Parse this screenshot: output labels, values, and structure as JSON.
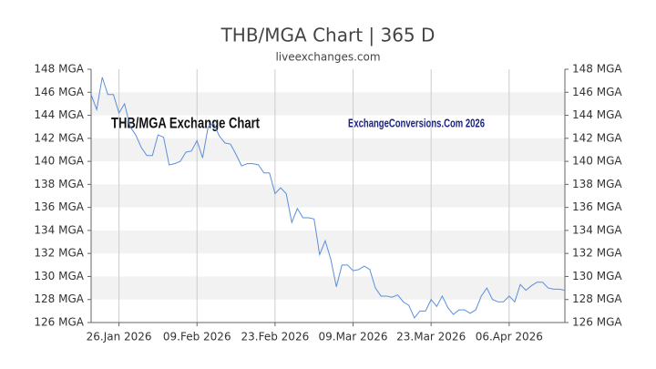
{
  "chart_data": {
    "type": "line",
    "title": "THB/MGA Chart | 365 D",
    "subtitle": "liveexchanges.com",
    "annotations": [
      "THB/MGA Exchange Chart",
      "ExchangeConversions.Com 2026"
    ],
    "x": [
      "2026-01-21",
      "2026-01-22",
      "2026-01-23",
      "2026-01-24",
      "2026-01-25",
      "2026-01-26",
      "2026-01-27",
      "2026-01-28",
      "2026-01-29",
      "2026-01-30",
      "2026-01-31",
      "2026-02-01",
      "2026-02-02",
      "2026-02-03",
      "2026-02-04",
      "2026-02-05",
      "2026-02-06",
      "2026-02-07",
      "2026-02-08",
      "2026-02-09",
      "2026-02-10",
      "2026-02-11",
      "2026-02-12",
      "2026-02-13",
      "2026-02-14",
      "2026-02-15",
      "2026-02-16",
      "2026-02-17",
      "2026-02-18",
      "2026-02-19",
      "2026-02-20",
      "2026-02-21",
      "2026-02-22",
      "2026-02-23",
      "2026-02-24",
      "2026-02-25",
      "2026-02-26",
      "2026-02-27",
      "2026-02-28",
      "2026-03-01",
      "2026-03-02",
      "2026-03-03",
      "2026-03-04",
      "2026-03-05",
      "2026-03-06",
      "2026-03-07",
      "2026-03-08",
      "2026-03-09",
      "2026-03-10",
      "2026-03-11",
      "2026-03-12",
      "2026-03-13",
      "2026-03-14",
      "2026-03-15",
      "2026-03-16",
      "2026-03-17",
      "2026-03-18",
      "2026-03-19",
      "2026-03-20",
      "2026-03-21",
      "2026-03-22",
      "2026-03-23",
      "2026-03-24",
      "2026-03-25",
      "2026-03-26",
      "2026-03-27",
      "2026-03-28",
      "2026-03-29",
      "2026-03-30",
      "2026-03-31",
      "2026-04-01",
      "2026-04-02",
      "2026-04-03",
      "2026-04-04",
      "2026-04-05",
      "2026-04-06",
      "2026-04-07",
      "2026-04-08",
      "2026-04-09",
      "2026-04-10",
      "2026-04-11",
      "2026-04-12",
      "2026-04-13",
      "2026-04-14",
      "2026-04-15",
      "2026-04-16"
    ],
    "series": [
      {
        "name": "THB/MGA",
        "color": "#5b8fd9",
        "values": [
          145.8,
          144.5,
          147.3,
          145.8,
          145.8,
          144.2,
          145.0,
          143.0,
          142.3,
          141.2,
          140.5,
          140.5,
          142.3,
          142.1,
          139.7,
          139.8,
          140.0,
          140.8,
          140.9,
          141.8,
          140.3,
          143.0,
          143.3,
          142.2,
          141.6,
          141.5,
          140.6,
          139.6,
          139.8,
          139.8,
          139.7,
          139.0,
          139.0,
          137.2,
          137.7,
          137.2,
          134.7,
          135.9,
          135.1,
          135.1,
          135.0,
          131.9,
          133.1,
          131.5,
          129.1,
          131.0,
          131.0,
          130.5,
          130.6,
          130.9,
          130.6,
          129.0,
          128.3,
          128.3,
          128.2,
          128.4,
          127.8,
          127.5,
          126.4,
          127.0,
          127.0,
          128.0,
          127.4,
          128.3,
          127.3,
          126.7,
          127.1,
          127.1,
          126.8,
          127.1,
          128.3,
          129.0,
          128.0,
          127.8,
          127.8,
          128.3,
          127.8,
          129.3,
          128.8,
          129.2,
          129.5,
          129.5,
          129.0,
          128.9,
          128.9,
          128.8
        ]
      }
    ],
    "xlim": [
      "2026-01-21",
      "2026-04-16"
    ],
    "xticks": [
      {
        "value": "2026-01-26",
        "label": "26.Jan 2026"
      },
      {
        "value": "2026-02-09",
        "label": "09.Feb 2026"
      },
      {
        "value": "2026-02-23",
        "label": "23.Feb 2026"
      },
      {
        "value": "2026-03-09",
        "label": "09.Mar 2026"
      },
      {
        "value": "2026-03-23",
        "label": "23.Mar 2026"
      },
      {
        "value": "2026-04-06",
        "label": "06.Apr 2026"
      }
    ],
    "ylim": [
      126,
      148
    ],
    "yticks": [
      {
        "value": 126,
        "label": "126 MGA"
      },
      {
        "value": 128,
        "label": "128 MGA"
      },
      {
        "value": 130,
        "label": "130 MGA"
      },
      {
        "value": 132,
        "label": "132 MGA"
      },
      {
        "value": 134,
        "label": "134 MGA"
      },
      {
        "value": 136,
        "label": "136 MGA"
      },
      {
        "value": 138,
        "label": "138 MGA"
      },
      {
        "value": 140,
        "label": "140 MGA"
      },
      {
        "value": 142,
        "label": "142 MGA"
      },
      {
        "value": 144,
        "label": "144 MGA"
      },
      {
        "value": 146,
        "label": "146 MGA"
      },
      {
        "value": 148,
        "label": "148 MGA"
      }
    ],
    "grid": true
  }
}
